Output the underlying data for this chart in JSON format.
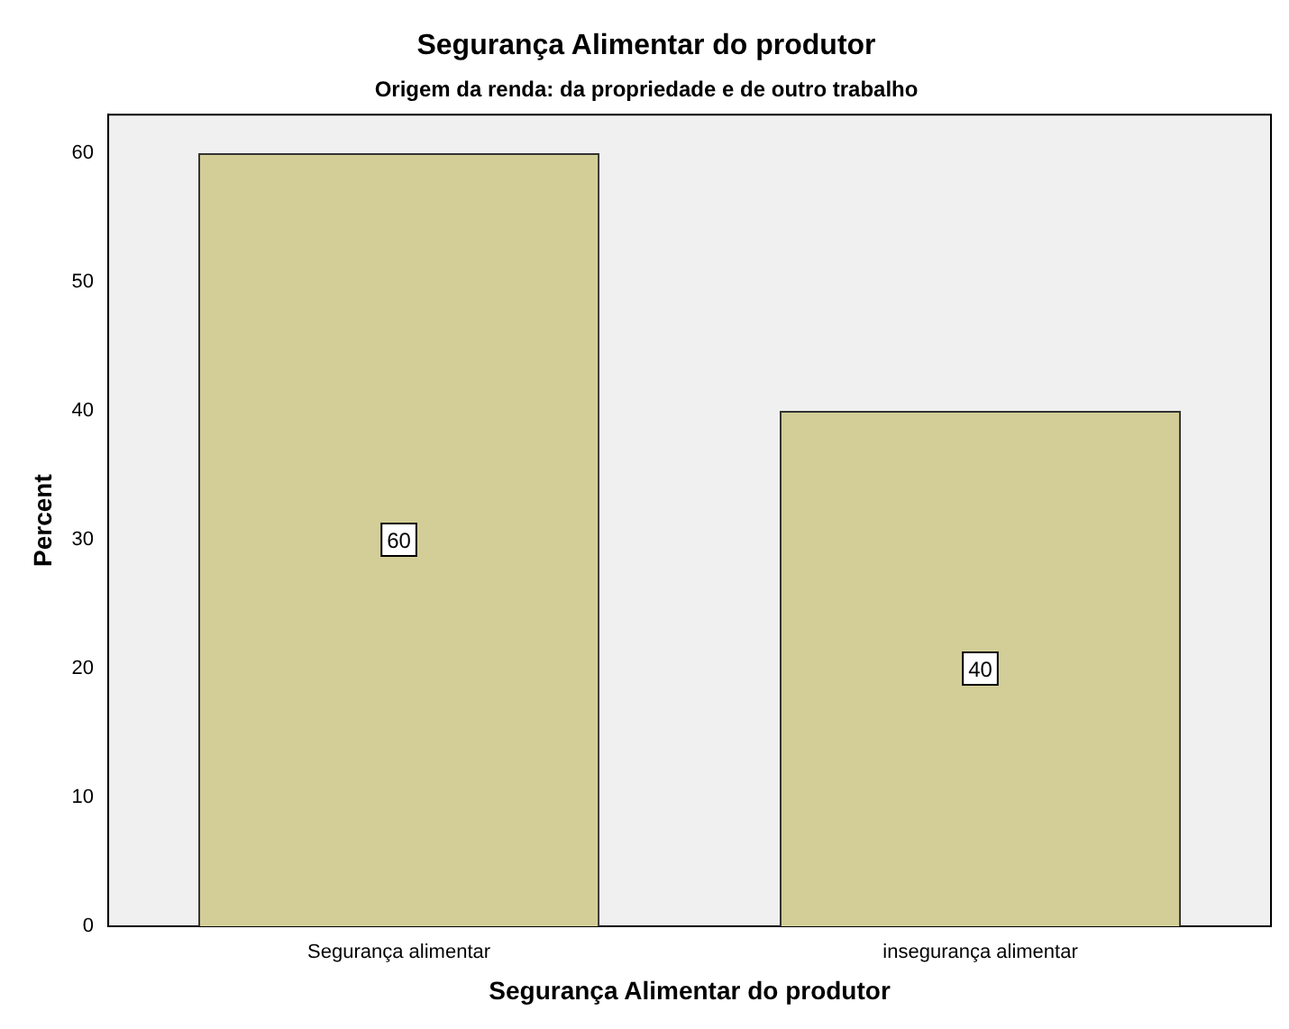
{
  "chart_data": {
    "type": "bar",
    "title": "Segurança Alimentar do produtor",
    "subtitle": "Origem da renda: da propriedade e de outro trabalho",
    "xlabel": "Segurança Alimentar do produtor",
    "ylabel": "Percent",
    "categories": [
      "Segurança alimentar",
      "insegurança alimentar"
    ],
    "values": [
      60,
      40
    ],
    "color": "#d3ce97",
    "ylim": [
      0,
      63
    ],
    "yticks": [
      0,
      10,
      20,
      30,
      40,
      50,
      60
    ],
    "grid": false,
    "legend": false,
    "data_labels": true
  }
}
